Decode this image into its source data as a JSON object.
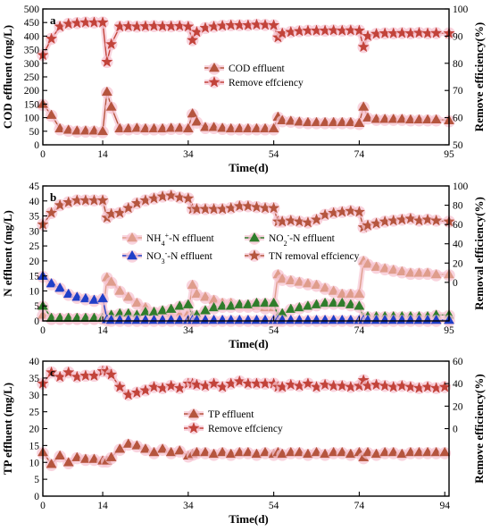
{
  "colors": {
    "cod": "#b5553e",
    "eff": "#c2433a",
    "nh4": "#df9d8c",
    "no2": "#2f7d2b",
    "no3": "#1f3fc8",
    "tn": "#b5553e",
    "tp": "#b5553e",
    "tpeff": "#c2433a",
    "halo": "#f7c6d3"
  },
  "chart_data": [
    {
      "type": "line",
      "panel": "a",
      "xlabel": "Time(d)",
      "ylabel_left": "COD effluent (mg/L)",
      "ylabel_right": "Remove efficiency(%)",
      "xlim": [
        0,
        95
      ],
      "xticks": [
        0,
        14,
        34,
        54,
        74,
        95
      ],
      "ylim_left": [
        0,
        500
      ],
      "yticks_left": [
        0,
        50,
        100,
        150,
        200,
        250,
        300,
        350,
        400,
        450,
        500
      ],
      "ylim_right": [
        50,
        100
      ],
      "yticks_right": [
        50,
        60,
        70,
        80,
        90,
        100
      ],
      "legend_position": "center",
      "series": [
        {
          "name": "COD effluent",
          "axis": "left",
          "marker": "triangle",
          "color": "cod",
          "x": [
            0,
            2,
            4,
            6,
            8,
            10,
            12,
            14,
            15,
            16,
            18,
            20,
            22,
            24,
            26,
            28,
            30,
            32,
            34,
            35,
            36,
            38,
            40,
            42,
            44,
            46,
            48,
            50,
            52,
            54,
            55,
            56,
            58,
            60,
            62,
            64,
            66,
            68,
            70,
            72,
            74,
            75,
            76,
            78,
            80,
            82,
            84,
            86,
            88,
            90,
            92,
            95
          ],
          "y": [
            150,
            110,
            60,
            55,
            52,
            52,
            52,
            50,
            195,
            140,
            60,
            60,
            62,
            60,
            60,
            60,
            62,
            62,
            60,
            115,
            85,
            65,
            65,
            62,
            60,
            60,
            60,
            60,
            60,
            60,
            103,
            90,
            88,
            85,
            83,
            83,
            83,
            83,
            83,
            83,
            80,
            140,
            100,
            95,
            95,
            95,
            95,
            93,
            93,
            93,
            93,
            90
          ]
        },
        {
          "name": "Remove effciency",
          "axis": "right",
          "marker": "star",
          "color": "eff",
          "x": [
            0,
            2,
            4,
            6,
            8,
            10,
            12,
            14,
            15,
            16,
            18,
            20,
            22,
            24,
            26,
            28,
            30,
            32,
            34,
            35,
            36,
            38,
            40,
            42,
            44,
            46,
            48,
            50,
            52,
            54,
            55,
            56,
            58,
            60,
            62,
            64,
            66,
            68,
            70,
            72,
            74,
            75,
            76,
            78,
            80,
            82,
            84,
            86,
            88,
            90,
            92,
            95
          ],
          "y": [
            83,
            89,
            93.5,
            94.5,
            94.8,
            95,
            95,
            95,
            80.5,
            87,
            93.5,
            93.6,
            93.5,
            93.6,
            93.7,
            93.6,
            93.6,
            93.7,
            93.5,
            88.5,
            91.5,
            93,
            93.5,
            93.8,
            94,
            94,
            94,
            94.2,
            94.1,
            94,
            89.5,
            91,
            91.5,
            91.8,
            92,
            92,
            92,
            92.1,
            92,
            92.1,
            92,
            86,
            90,
            90.8,
            91,
            91,
            91.1,
            91,
            91.2,
            91,
            91.1,
            91
          ]
        }
      ]
    },
    {
      "type": "line",
      "panel": "b",
      "xlabel": "Time(d)",
      "ylabel_left": "N effluent (mg/L)",
      "ylabel_right": "Removal efficiency(%)",
      "xlim": [
        0,
        95
      ],
      "xticks": [
        0,
        14,
        34,
        54,
        74,
        95
      ],
      "ylim_left": [
        0,
        45
      ],
      "yticks_left": [
        0,
        5,
        10,
        15,
        20,
        25,
        30,
        35,
        40,
        45
      ],
      "ylim_right": [
        -40,
        100
      ],
      "yticks_right": [
        0,
        20,
        40,
        60,
        80,
        100
      ],
      "legend_position": "center",
      "series": [
        {
          "name_parts": [
            "NH",
            "4",
            "+",
            "-N effluent"
          ],
          "axis": "left",
          "marker": "triangle",
          "color": "nh4",
          "x": [
            0,
            2,
            4,
            6,
            8,
            10,
            12,
            14,
            15,
            16,
            18,
            20,
            22,
            24,
            26,
            28,
            30,
            32,
            34,
            35,
            36,
            38,
            40,
            42,
            44,
            46,
            48,
            50,
            52,
            54,
            55,
            56,
            58,
            60,
            62,
            64,
            66,
            68,
            70,
            72,
            74,
            75,
            76,
            78,
            80,
            82,
            84,
            86,
            88,
            90,
            92,
            95
          ],
          "y": [
            2,
            1,
            1,
            1,
            1,
            1,
            1,
            1,
            14.5,
            13,
            10,
            8,
            6,
            4.5,
            3,
            2.5,
            2,
            2,
            2.5,
            12,
            9,
            8,
            7,
            6,
            6,
            5,
            5,
            5,
            4.5,
            4.5,
            15.5,
            14,
            13.5,
            13,
            12.5,
            12,
            11,
            10,
            9,
            9,
            9,
            20,
            19,
            18,
            17.5,
            17,
            16.5,
            16,
            16,
            16,
            15.5,
            15.5
          ]
        },
        {
          "name_parts": [
            "NO",
            "2",
            "-",
            "-N effluent"
          ],
          "axis": "left",
          "marker": "triangle",
          "color": "no2",
          "x": [
            0,
            2,
            4,
            6,
            8,
            10,
            12,
            14,
            15,
            16,
            18,
            20,
            22,
            24,
            26,
            28,
            30,
            32,
            34,
            35,
            36,
            38,
            40,
            42,
            44,
            46,
            48,
            50,
            52,
            54,
            55,
            56,
            58,
            60,
            62,
            64,
            66,
            68,
            70,
            72,
            74,
            75,
            76,
            78,
            80,
            82,
            84,
            86,
            88,
            90,
            92,
            95
          ],
          "y": [
            5,
            1,
            1,
            1,
            1,
            1,
            1,
            1,
            1.5,
            2,
            2.5,
            2.5,
            2,
            3,
            3,
            3.5,
            4,
            5,
            5.5,
            1.5,
            2,
            3.5,
            4.5,
            5,
            5,
            5.5,
            5.5,
            6,
            6,
            6,
            1.5,
            2.5,
            4,
            4.5,
            5,
            5.5,
            6,
            6,
            6,
            5.5,
            5,
            1,
            1.5,
            1.5,
            1.5,
            1.5,
            1.5,
            1.5,
            1.5,
            1.5,
            2,
            2
          ]
        },
        {
          "name_parts": [
            "NO",
            "3",
            "-",
            "-N effluent"
          ],
          "axis": "left",
          "marker": "triangle",
          "color": "no3",
          "x": [
            0,
            2,
            4,
            6,
            8,
            10,
            12,
            14,
            15,
            16,
            18,
            20,
            22,
            24,
            26,
            28,
            30,
            32,
            34,
            35,
            36,
            38,
            40,
            42,
            44,
            46,
            48,
            50,
            52,
            54,
            55,
            56,
            58,
            60,
            62,
            64,
            66,
            68,
            70,
            72,
            74,
            75,
            76,
            78,
            80,
            82,
            84,
            86,
            88,
            90,
            92,
            95
          ],
          "y": [
            15,
            12.5,
            11,
            9,
            8,
            7.5,
            7,
            7.5,
            0.5,
            0.3,
            0.3,
            0.3,
            0.3,
            0.3,
            0.3,
            0.3,
            0.3,
            0.3,
            0.3,
            0.3,
            0.3,
            0.3,
            0.3,
            0.3,
            0.3,
            0.3,
            0.3,
            0.3,
            0.3,
            0.3,
            0.3,
            0.3,
            0.3,
            0.3,
            0.3,
            0.3,
            0.3,
            0.3,
            0.3,
            0.3,
            0.3,
            0.3,
            0.3,
            0.3,
            0.3,
            0.3,
            0.3,
            0.3,
            0.3,
            0.3,
            0.3,
            0.3
          ]
        },
        {
          "name": "TN removal effciency",
          "axis": "right",
          "marker": "star",
          "color": "tn",
          "x": [
            0,
            2,
            4,
            6,
            8,
            10,
            12,
            14,
            15,
            16,
            18,
            20,
            22,
            24,
            26,
            28,
            30,
            32,
            34,
            35,
            36,
            38,
            40,
            42,
            44,
            46,
            48,
            50,
            52,
            54,
            55,
            56,
            58,
            60,
            62,
            64,
            66,
            68,
            70,
            72,
            74,
            75,
            76,
            78,
            80,
            82,
            84,
            86,
            88,
            90,
            92,
            95
          ],
          "y": [
            60,
            72,
            80,
            83,
            85,
            85,
            85,
            85,
            67,
            71,
            72,
            77,
            82,
            85,
            87,
            89,
            90,
            88,
            87,
            76,
            76,
            76,
            76,
            76,
            77,
            79,
            79,
            78,
            77,
            77,
            63,
            63,
            64,
            63,
            62,
            65,
            70,
            72,
            73,
            74,
            73,
            57,
            59,
            61,
            63,
            64,
            65,
            66,
            64,
            65,
            64,
            63
          ]
        }
      ]
    },
    {
      "type": "line",
      "panel": "c",
      "xlabel": "Time(d)",
      "ylabel_left": "TP effluent (mg/L)",
      "ylabel_right": "Remove efficiency(%)",
      "xlim": [
        0,
        95
      ],
      "xticks": [
        0,
        14,
        34,
        54,
        74,
        94
      ],
      "ylim_left": [
        0,
        40
      ],
      "yticks_left": [
        0,
        5,
        10,
        15,
        20,
        25,
        30,
        35,
        40
      ],
      "ylim_right": [
        -60,
        60
      ],
      "yticks_right": [
        0,
        20,
        40,
        60
      ],
      "legend_position": "center",
      "series": [
        {
          "name": "TP effluent",
          "axis": "left",
          "marker": "triangle",
          "color": "tp",
          "x": [
            0,
            2,
            4,
            6,
            8,
            10,
            12,
            14,
            15,
            16,
            18,
            20,
            22,
            24,
            26,
            28,
            30,
            32,
            34,
            35,
            36,
            38,
            40,
            42,
            44,
            46,
            48,
            50,
            52,
            54,
            55,
            56,
            58,
            60,
            62,
            64,
            66,
            68,
            70,
            72,
            74,
            75,
            76,
            78,
            80,
            82,
            84,
            86,
            88,
            90,
            92,
            94
          ],
          "y": [
            13,
            9.5,
            12,
            10,
            11.5,
            11,
            11,
            10.5,
            10.5,
            11.5,
            14,
            15.5,
            15,
            14,
            13,
            14,
            13,
            13.5,
            12,
            12.5,
            13,
            13,
            12.5,
            13,
            12.5,
            13,
            13,
            12.5,
            13,
            12.5,
            13,
            12.5,
            13,
            13,
            12.5,
            13,
            12.5,
            13,
            13,
            12.5,
            13,
            11.5,
            13,
            12.5,
            13,
            13,
            12.5,
            13,
            13,
            13,
            13,
            13
          ]
        },
        {
          "name": "Remove effciency",
          "axis": "right",
          "marker": "star",
          "color": "tpeff",
          "x": [
            0,
            2,
            4,
            6,
            8,
            10,
            12,
            14,
            15,
            16,
            18,
            20,
            22,
            24,
            26,
            28,
            30,
            32,
            34,
            35,
            36,
            38,
            40,
            42,
            44,
            46,
            48,
            50,
            52,
            54,
            55,
            56,
            58,
            60,
            62,
            64,
            66,
            68,
            70,
            72,
            74,
            75,
            76,
            78,
            80,
            82,
            84,
            86,
            88,
            90,
            92,
            94
          ],
          "y": [
            40,
            50,
            46,
            50,
            46,
            47,
            47,
            51,
            51,
            48,
            37,
            30,
            32,
            34,
            37,
            36,
            38,
            36,
            40,
            40,
            39,
            38,
            40,
            37,
            40,
            42,
            40,
            40,
            40,
            40,
            37,
            37,
            39,
            38,
            40,
            37,
            39,
            38,
            38,
            37,
            38,
            43,
            38,
            39,
            38,
            37,
            38,
            37,
            36,
            37,
            36,
            37
          ]
        }
      ]
    }
  ]
}
